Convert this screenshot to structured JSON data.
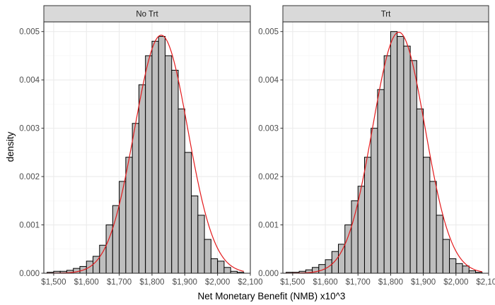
{
  "chart_data": [
    {
      "type": "bar",
      "panel": "No Trt",
      "xlabel": "Net Monetary Benefit (NMB) x10^3",
      "ylabel": "density",
      "xlim": [
        1470,
        2100
      ],
      "ylim": [
        0,
        0.0052
      ],
      "x_ticks": [
        1500,
        1600,
        1700,
        1800,
        1900,
        2000,
        2100
      ],
      "x_tick_labels": [
        "$1,500",
        "$1,600",
        "$1,700",
        "$1,800",
        "$1,900",
        "$2,000",
        "$2,100"
      ],
      "y_ticks": [
        0,
        0.001,
        0.002,
        0.003,
        0.004,
        0.005
      ],
      "y_tick_labels": [
        "0.000",
        "0.001",
        "0.002",
        "0.003",
        "0.004",
        "0.005"
      ],
      "grid": true,
      "bin_edges": [
        1480,
        1500,
        1520,
        1540,
        1560,
        1580,
        1600,
        1620,
        1640,
        1660,
        1680,
        1700,
        1720,
        1740,
        1760,
        1780,
        1800,
        1820,
        1840,
        1860,
        1880,
        1900,
        1920,
        1940,
        1960,
        1980,
        2000,
        2020,
        2040,
        2060,
        2080
      ],
      "values": [
        2e-05,
        4e-05,
        4e-05,
        6e-05,
        0.0001,
        0.00014,
        0.00025,
        0.00035,
        0.00058,
        0.001,
        0.0014,
        0.0019,
        0.0024,
        0.0031,
        0.0039,
        0.0045,
        0.0048,
        0.0049,
        0.0045,
        0.0042,
        0.0034,
        0.0025,
        0.0016,
        0.0012,
        0.0007,
        0.0003,
        0.00025,
        0.00012,
        4e-05,
        2e-05
      ],
      "density_mean": 1828,
      "density_sd": 81,
      "series": [
        {
          "name": "",
          "kind": "histogram",
          "color": "#bebebe"
        },
        {
          "name": "",
          "kind": "density",
          "color": "#e31a1c"
        }
      ]
    },
    {
      "type": "bar",
      "panel": "Trt",
      "xlabel": "Net Monetary Benefit (NMB) x10^3",
      "ylabel": "density",
      "xlim": [
        1470,
        2100
      ],
      "ylim": [
        0,
        0.0052
      ],
      "x_ticks": [
        1500,
        1600,
        1700,
        1800,
        1900,
        2000,
        2100
      ],
      "x_tick_labels": [
        "$1,500",
        "$1,600",
        "$1,700",
        "$1,800",
        "$1,900",
        "$2,000",
        "$2,100"
      ],
      "y_ticks": [
        0,
        0.001,
        0.002,
        0.003,
        0.004,
        0.005
      ],
      "y_tick_labels": [
        "0.000",
        "0.001",
        "0.002",
        "0.003",
        "0.004",
        "0.005"
      ],
      "grid": true,
      "bin_edges": [
        1480,
        1500,
        1520,
        1540,
        1560,
        1580,
        1600,
        1620,
        1640,
        1660,
        1680,
        1700,
        1720,
        1740,
        1760,
        1780,
        1800,
        1820,
        1840,
        1860,
        1880,
        1900,
        1920,
        1940,
        1960,
        1980,
        2000,
        2020,
        2040,
        2060,
        2080
      ],
      "values": [
        2e-05,
        2e-05,
        4e-05,
        7e-05,
        0.00012,
        0.00018,
        0.00028,
        0.00045,
        0.0006,
        0.001,
        0.0015,
        0.0018,
        0.0024,
        0.003,
        0.0038,
        0.0045,
        0.005,
        0.0049,
        0.0047,
        0.0044,
        0.0034,
        0.0024,
        0.0019,
        0.0012,
        0.0007,
        0.0003,
        0.0002,
        0.00015,
        5e-05,
        2e-05
      ],
      "density_mean": 1825,
      "density_sd": 80,
      "series": [
        {
          "name": "",
          "kind": "histogram",
          "color": "#bebebe"
        },
        {
          "name": "",
          "kind": "density",
          "color": "#e31a1c"
        }
      ]
    }
  ]
}
